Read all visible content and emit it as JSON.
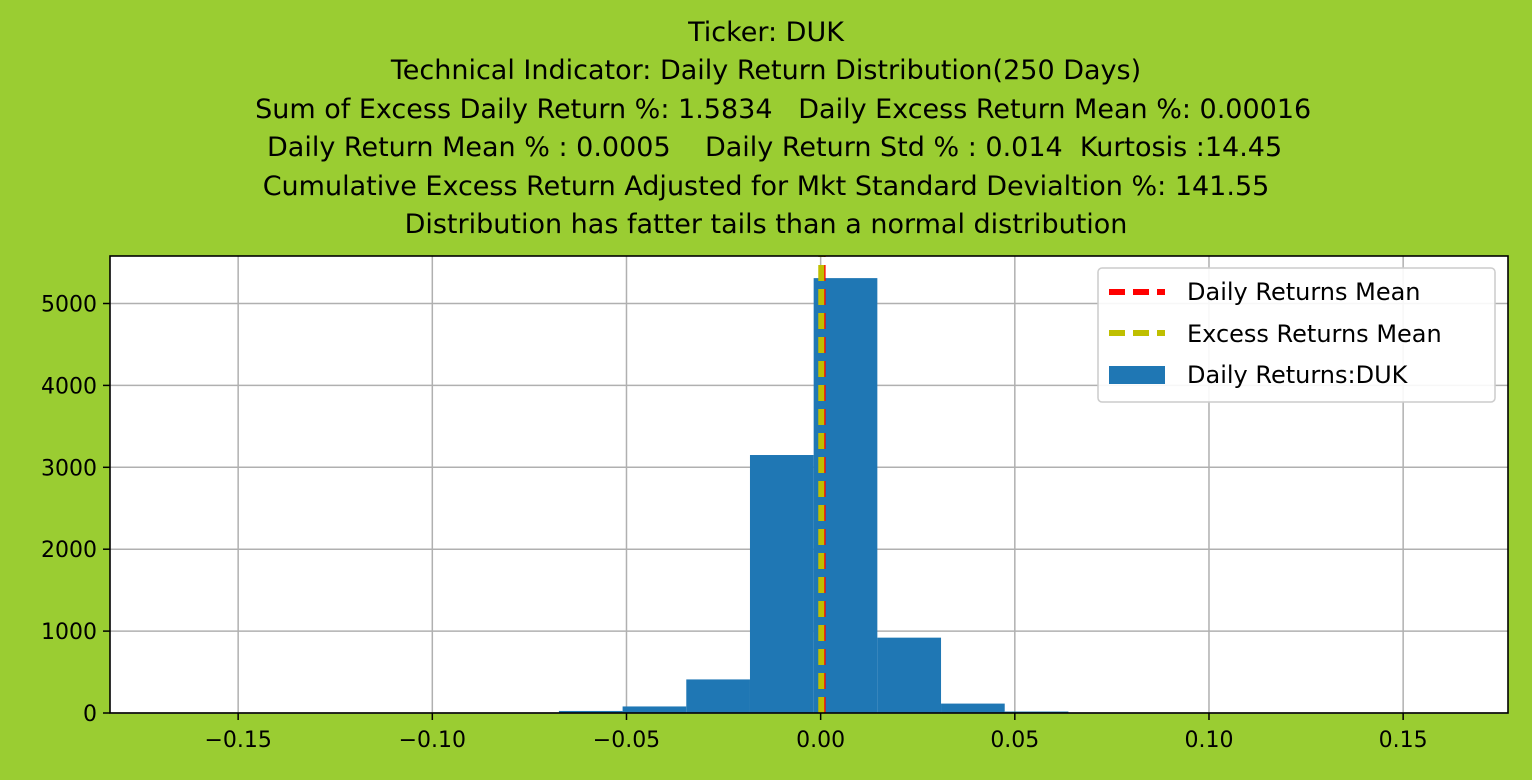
{
  "title_lines": [
    "Ticker: DUK",
    "Technical Indicator: Daily Return Distribution(250 Days)",
    "    Sum of Excess Daily Return %: 1.5834   Daily Excess Return Mean %: 0.00016",
    "  Daily Return Mean % : 0.0005    Daily Return Std % : 0.014  Kurtosis :14.45",
    "Cumulative Excess Return Adjusted for Mkt Standard Devialtion %: 141.55",
    "Distribution has fatter tails than a normal distribution"
  ],
  "colors": {
    "background": "#9acd32",
    "bars": "#1f77b4",
    "daily_mean_line": "#ff0000",
    "excess_mean_line": "#bfbf00",
    "grid": "#b0b0b0"
  },
  "chart_data": {
    "type": "histogram",
    "xlim": [
      -0.183,
      0.177
    ],
    "ylim": [
      0,
      5580
    ],
    "xticks": [
      -0.15,
      -0.1,
      -0.05,
      0.0,
      0.05,
      0.1,
      0.15
    ],
    "xtick_labels": [
      "−0.15",
      "−0.10",
      "−0.05",
      "0.00",
      "0.05",
      "0.10",
      "0.15"
    ],
    "yticks": [
      0,
      1000,
      2000,
      3000,
      4000,
      5000
    ],
    "ytick_labels": [
      "0",
      "1000",
      "2000",
      "3000",
      "4000",
      "5000"
    ],
    "grid": true,
    "bins": [
      {
        "x0": -0.0674,
        "x1": -0.051,
        "count": 25
      },
      {
        "x0": -0.051,
        "x1": -0.0346,
        "count": 80
      },
      {
        "x0": -0.0346,
        "x1": -0.0182,
        "count": 410
      },
      {
        "x0": -0.0182,
        "x1": -0.0018,
        "count": 3150
      },
      {
        "x0": -0.0018,
        "x1": 0.0146,
        "count": 5310
      },
      {
        "x0": 0.0146,
        "x1": 0.031,
        "count": 920
      },
      {
        "x0": 0.031,
        "x1": 0.0474,
        "count": 115
      },
      {
        "x0": 0.0474,
        "x1": 0.0638,
        "count": 18
      }
    ],
    "vlines": [
      {
        "name": "Daily Returns Mean",
        "x": 0.0005,
        "color": "#ff0000"
      },
      {
        "name": "Excess Returns Mean",
        "x": 0.00016,
        "color": "#bfbf00"
      }
    ],
    "series_name": "Daily Returns:DUK",
    "legend_position": "upper right",
    "legend": [
      "Daily Returns Mean",
      "Excess Returns Mean",
      "Daily Returns:DUK"
    ]
  }
}
